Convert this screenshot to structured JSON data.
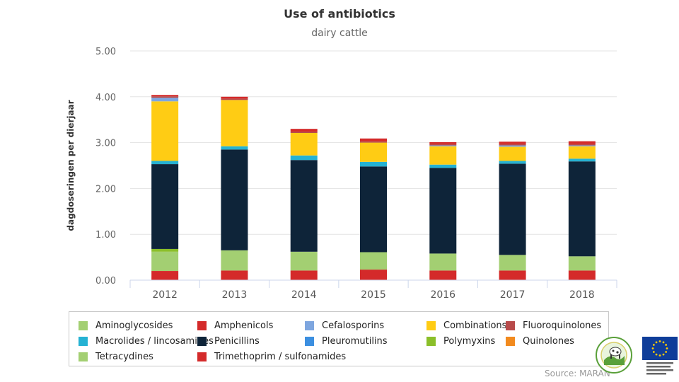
{
  "chart_data": {
    "type": "bar",
    "stacked": true,
    "title": "Use of antibiotics",
    "subtitle": "dairy cattle",
    "xlabel": "",
    "ylabel": "dagdoseringen per dierjaar",
    "ylim": [
      0,
      5
    ],
    "yticks": [
      "0.00",
      "1.00",
      "2.00",
      "3.00",
      "4.00",
      "5.00"
    ],
    "grid": true,
    "legend_position": "bottom",
    "categories": [
      "2012",
      "2013",
      "2014",
      "2015",
      "2016",
      "2017",
      "2018"
    ],
    "series": [
      {
        "name": "Trimethoprim / sulfonamides",
        "color": "#d42a2a",
        "values": [
          0.2,
          0.21,
          0.21,
          0.23,
          0.21,
          0.21,
          0.21
        ]
      },
      {
        "name": "Tetracydines",
        "color": "#a3cf72",
        "values": [
          0.42,
          0.44,
          0.41,
          0.38,
          0.37,
          0.34,
          0.31
        ]
      },
      {
        "name": "Aminoglycosides",
        "color": "#a3cf72",
        "values": [
          0.0,
          0.0,
          0.0,
          0.0,
          0.0,
          0.0,
          0.0
        ]
      },
      {
        "name": "Polymyxins",
        "color": "#8bbf2a",
        "values": [
          0.06,
          0.0,
          0.0,
          0.0,
          0.0,
          0.0,
          0.0
        ]
      },
      {
        "name": "Penicillins",
        "color": "#0e2439",
        "values": [
          1.85,
          2.2,
          2.0,
          1.87,
          1.87,
          1.99,
          2.07
        ]
      },
      {
        "name": "Macrolides / lincosamides",
        "color": "#25b2d3",
        "values": [
          0.07,
          0.07,
          0.1,
          0.1,
          0.07,
          0.06,
          0.06
        ]
      },
      {
        "name": "Pleuromutilins",
        "color": "#3c8fe0",
        "values": [
          0.0,
          0.0,
          0.0,
          0.0,
          0.0,
          0.0,
          0.0
        ]
      },
      {
        "name": "Combinations",
        "color": "#ffcc14",
        "values": [
          1.3,
          1.01,
          0.49,
          0.42,
          0.4,
          0.31,
          0.27
        ]
      },
      {
        "name": "Cefalosporins",
        "color": "#7ea6df",
        "values": [
          0.08,
          0.0,
          0.0,
          0.0,
          0.02,
          0.03,
          0.02
        ]
      },
      {
        "name": "Quinolones",
        "color": "#f28a1e",
        "values": [
          0.0,
          0.0,
          0.0,
          0.0,
          0.0,
          0.0,
          0.0
        ]
      },
      {
        "name": "Fluoroquinolones",
        "color": "#b84a4a",
        "values": [
          0.03,
          0.03,
          0.03,
          0.03,
          0.03,
          0.03,
          0.03
        ]
      },
      {
        "name": "Amphenicols",
        "color": "#d42a2a",
        "values": [
          0.03,
          0.04,
          0.06,
          0.06,
          0.04,
          0.05,
          0.06
        ]
      }
    ],
    "legend": [
      {
        "name": "Aminoglycosides",
        "color": "#a3cf72"
      },
      {
        "name": "Amphenicols",
        "color": "#d42a2a"
      },
      {
        "name": "Cefalosporins",
        "color": "#7ea6df"
      },
      {
        "name": "Combinations",
        "color": "#ffcc14"
      },
      {
        "name": "Fluoroquinolones",
        "color": "#b84a4a"
      },
      {
        "name": "Macrolides / lincosamides",
        "color": "#25b2d3"
      },
      {
        "name": "Penicillins",
        "color": "#0e2439"
      },
      {
        "name": "Pleuromutilins",
        "color": "#3c8fe0"
      },
      {
        "name": "Polymyxins",
        "color": "#8bbf2a"
      },
      {
        "name": "Quinolones",
        "color": "#f28a1e"
      },
      {
        "name": "Tetracydines",
        "color": "#a3cf72"
      },
      {
        "name": "Trimethoprim / sulfonamides",
        "color": "#d42a2a"
      }
    ]
  },
  "source": "Source: MARAN",
  "logos": {
    "farm": "farm-logo",
    "eu": "eu-flag-logo"
  }
}
